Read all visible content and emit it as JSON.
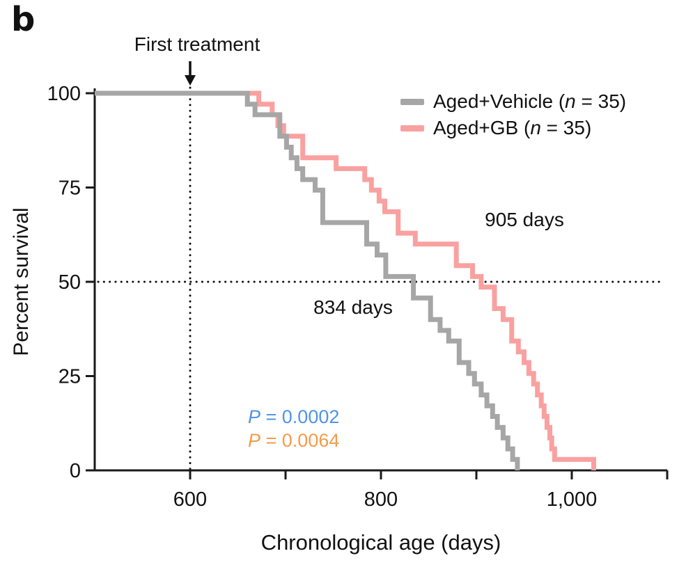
{
  "panel_label": "b",
  "colors": {
    "vehicle": "#a6a6a6",
    "gb": "#f9a1a0",
    "p_blue": "#4f94e8",
    "p_orange": "#f59b4a",
    "axis": "#1a1a1a"
  },
  "axes": {
    "x_label": "Chronological age (days)",
    "y_label": "Percent survival"
  },
  "annotations": {
    "first_treatment": "First treatment",
    "gb_median": "905 days",
    "vehicle_median": "834 days"
  },
  "legend": [
    {
      "prefix": "Aged+Vehicle (",
      "n": "n",
      "suffix": " = 35)",
      "color_key": "vehicle"
    },
    {
      "prefix": "Aged+GB (",
      "n": "n",
      "suffix": " = 35)",
      "color_key": "gb"
    }
  ],
  "p_values": [
    {
      "label": "P",
      "rest": " = 0.0002",
      "color_key": "p_blue"
    },
    {
      "label": "P",
      "rest": " = 0.0064",
      "color_key": "p_orange"
    }
  ],
  "chart_data": {
    "type": "line",
    "subtype": "kaplan-meier-step-survival",
    "title": "",
    "xlabel": "Chronological age (days)",
    "ylabel": "Percent survival",
    "xlim": [
      500,
      1100
    ],
    "ylim": [
      0,
      100
    ],
    "grid": false,
    "legend_position": "top-right",
    "x_ticks": [
      {
        "value": 600,
        "label": "600"
      },
      {
        "value": 700,
        "label": ""
      },
      {
        "value": 800,
        "label": "800"
      },
      {
        "value": 900,
        "label": ""
      },
      {
        "value": 1000,
        "label": "1,000"
      },
      {
        "value": 1100,
        "label": ""
      }
    ],
    "y_ticks": [
      {
        "value": 0,
        "label": "0"
      },
      {
        "value": 25,
        "label": "25"
      },
      {
        "value": 50,
        "label": "50"
      },
      {
        "value": 75,
        "label": "75"
      },
      {
        "value": 100,
        "label": "100"
      }
    ],
    "reference_lines": {
      "vertical_x_days": 600,
      "vertical_meaning": "First treatment",
      "horizontal_y_percent": 50
    },
    "series": [
      {
        "name": "Aged+Vehicle (n = 35)",
        "n": 35,
        "color_key": "vehicle",
        "median_days": 834,
        "start": [
          500,
          100
        ],
        "points": [
          [
            660,
            97.1
          ],
          [
            668,
            94.3
          ],
          [
            694,
            88.6
          ],
          [
            701,
            85.7
          ],
          [
            706,
            82.9
          ],
          [
            712,
            80.0
          ],
          [
            718,
            77.1
          ],
          [
            731,
            74.3
          ],
          [
            739,
            65.7
          ],
          [
            785,
            60.0
          ],
          [
            796,
            57.1
          ],
          [
            805,
            51.4
          ],
          [
            834,
            45.7
          ],
          [
            852,
            40.0
          ],
          [
            862,
            37.1
          ],
          [
            871,
            34.3
          ],
          [
            882,
            28.6
          ],
          [
            892,
            25.7
          ],
          [
            898,
            22.9
          ],
          [
            905,
            20.0
          ],
          [
            911,
            17.1
          ],
          [
            917,
            14.3
          ],
          [
            922,
            11.4
          ],
          [
            928,
            8.6
          ],
          [
            933,
            5.7
          ],
          [
            938,
            2.9
          ],
          [
            943,
            0
          ]
        ]
      },
      {
        "name": "Aged+GB (n = 35)",
        "n": 35,
        "color_key": "gb",
        "median_days": 905,
        "start": [
          500,
          100
        ],
        "points": [
          [
            672,
            97.1
          ],
          [
            686,
            94.3
          ],
          [
            692,
            91.4
          ],
          [
            698,
            88.6
          ],
          [
            718,
            82.9
          ],
          [
            753,
            80.0
          ],
          [
            783,
            77.1
          ],
          [
            790,
            74.3
          ],
          [
            798,
            71.4
          ],
          [
            804,
            68.6
          ],
          [
            818,
            62.9
          ],
          [
            836,
            60.0
          ],
          [
            879,
            54.3
          ],
          [
            896,
            51.4
          ],
          [
            905,
            48.6
          ],
          [
            919,
            42.9
          ],
          [
            928,
            40.0
          ],
          [
            937,
            34.3
          ],
          [
            944,
            31.4
          ],
          [
            950,
            28.6
          ],
          [
            955,
            25.7
          ],
          [
            960,
            22.9
          ],
          [
            964,
            20.0
          ],
          [
            968,
            17.1
          ],
          [
            971,
            14.3
          ],
          [
            974,
            11.4
          ],
          [
            977,
            8.6
          ],
          [
            979,
            5.7
          ],
          [
            982,
            2.9
          ],
          [
            1023,
            0
          ]
        ]
      }
    ],
    "stat_annotations": [
      "P = 0.0002",
      "P = 0.0064"
    ]
  }
}
